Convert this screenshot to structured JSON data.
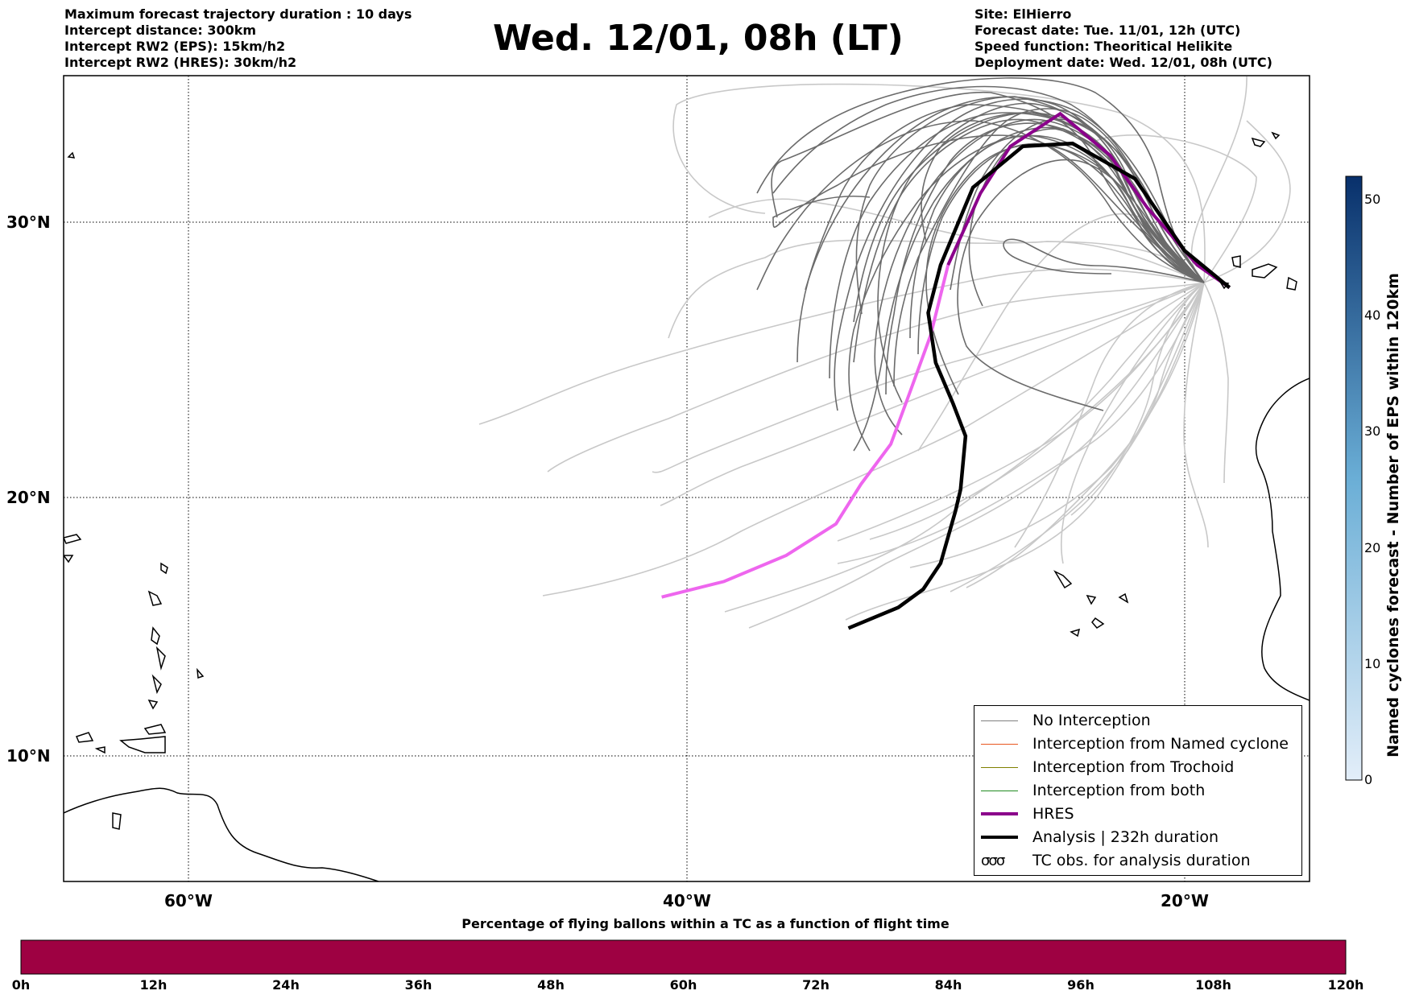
{
  "header": {
    "left": [
      "Maximum forecast trajectory duration : 10 days",
      "Intercept distance: 300km",
      "Intercept RW2 (EPS):  15km/h2",
      "Intercept RW2 (HRES): 30km/h2"
    ],
    "title": "Wed. 12/01, 08h (LT)",
    "right": [
      "Site: ElHierro",
      "Forecast date: Tue. 11/01, 12h (UTC)",
      "Speed function: Theoritical Helikite",
      "Deployment date: Wed. 12/01, 08h (UTC)"
    ]
  },
  "map": {
    "lon_labels": [
      "60°W",
      "40°W",
      "20°W"
    ],
    "lat_labels": [
      "30°N",
      "20°N",
      "10°N"
    ],
    "extent": {
      "lon": [
        -65,
        -15
      ],
      "lat": [
        5.3,
        34.6
      ]
    }
  },
  "legend": {
    "items": [
      {
        "label": "No Interception",
        "color": "#808080"
      },
      {
        "label": "Interception from Named cyclone",
        "color": "#e8561e"
      },
      {
        "label": "Interception from Trochoid",
        "color": "#808000"
      },
      {
        "label": "Interception from both",
        "color": "#228b22"
      },
      {
        "label": "HRES",
        "color": "#8b008b"
      },
      {
        "label": "Analysis | 232h duration",
        "color": "#000000"
      },
      {
        "label": "TC obs. for analysis duration",
        "color": "#000000",
        "icon": "cyclone-symbol-icon",
        "glyph": "σσσ"
      }
    ]
  },
  "colorbar": {
    "label": "Named cyclones forecast - Number of EPS within 120km",
    "ticks": [
      "0",
      "10",
      "20",
      "30",
      "40",
      "50"
    ],
    "max": 52,
    "color_low": "#e3eef9",
    "color_high": "#08306b"
  },
  "time_bar": {
    "title": "Percentage of flying ballons within a TC as a function of flight time",
    "ticks": [
      "0h",
      "12h",
      "24h",
      "36h",
      "48h",
      "60h",
      "72h",
      "84h",
      "96h",
      "108h",
      "120h"
    ],
    "color": "#9e0142",
    "percent": 100
  },
  "trajectories": {
    "hres": [
      [
        -18.2,
        27.7
      ],
      [
        -19.5,
        28.5
      ],
      [
        -21.5,
        30.5
      ],
      [
        -23.0,
        32.3
      ],
      [
        -25.0,
        33.7
      ],
      [
        -27.0,
        32.6
      ],
      [
        -28.2,
        31.0
      ],
      [
        -29.5,
        28.5
      ],
      [
        -30.2,
        26.0
      ],
      [
        -31.0,
        24.0
      ],
      [
        -31.8,
        22.0
      ],
      [
        -33.0,
        20.5
      ],
      [
        -34.0,
        19.0
      ],
      [
        -36.0,
        17.8
      ],
      [
        -38.5,
        16.8
      ],
      [
        -41.0,
        16.2
      ]
    ],
    "analysis": [
      [
        -18.2,
        27.7
      ],
      [
        -20.0,
        29.0
      ],
      [
        -22.0,
        31.5
      ],
      [
        -24.5,
        32.7
      ],
      [
        -26.5,
        32.6
      ],
      [
        -28.5,
        31.2
      ],
      [
        -29.8,
        28.5
      ],
      [
        -30.3,
        26.8
      ],
      [
        -30.0,
        25.0
      ],
      [
        -29.3,
        23.5
      ],
      [
        -28.8,
        22.3
      ],
      [
        -29.0,
        20.3
      ],
      [
        -29.2,
        19.5
      ],
      [
        -29.8,
        17.5
      ],
      [
        -30.5,
        16.5
      ],
      [
        -31.5,
        15.8
      ],
      [
        -33.5,
        15.0
      ]
    ]
  }
}
